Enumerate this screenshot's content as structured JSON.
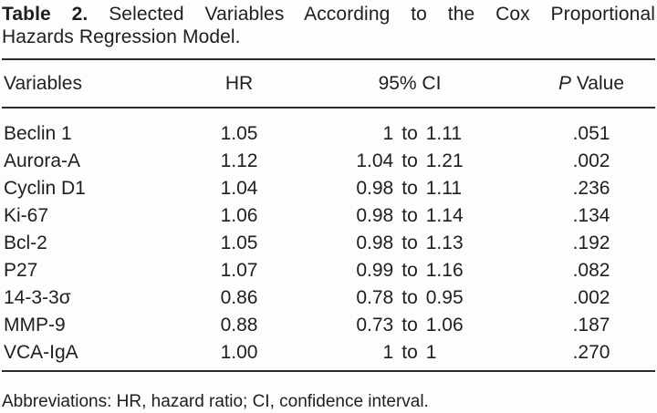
{
  "table": {
    "label": "Table 2.",
    "title_line1": "Selected Variables According to the Cox Proportional",
    "title_line2": "Hazards Regression Model.",
    "columns": {
      "variables": "Variables",
      "hr": "HR",
      "ci": "95% CI",
      "p_italic": "P",
      "p_rest": "Value"
    },
    "ci_separator": "to",
    "rows": [
      {
        "variable": "Beclin 1",
        "hr": "1.05",
        "ci_low": "1",
        "ci_high": "1.11",
        "p": ".051"
      },
      {
        "variable": "Aurora-A",
        "hr": "1.12",
        "ci_low": "1.04",
        "ci_high": "1.21",
        "p": ".002"
      },
      {
        "variable": "Cyclin D1",
        "hr": "1.04",
        "ci_low": "0.98",
        "ci_high": "1.11",
        "p": ".236"
      },
      {
        "variable": "Ki-67",
        "hr": "1.06",
        "ci_low": "0.98",
        "ci_high": "1.14",
        "p": ".134"
      },
      {
        "variable": "Bcl-2",
        "hr": "1.05",
        "ci_low": "0.98",
        "ci_high": "1.13",
        "p": ".192"
      },
      {
        "variable": "P27",
        "hr": "1.07",
        "ci_low": "0.99",
        "ci_high": "1.16",
        "p": ".082"
      },
      {
        "variable": "14-3-3σ",
        "hr": "0.86",
        "ci_low": "0.78",
        "ci_high": "0.95",
        "p": ".002"
      },
      {
        "variable": "MMP-9",
        "hr": "0.88",
        "ci_low": "0.73",
        "ci_high": "1.06",
        "p": ".187"
      },
      {
        "variable": "VCA-IgA",
        "hr": "1.00",
        "ci_low": "1",
        "ci_high": "1",
        "p": ".270"
      }
    ],
    "footnote": "Abbreviations: HR, hazard ratio; CI, confidence interval."
  }
}
